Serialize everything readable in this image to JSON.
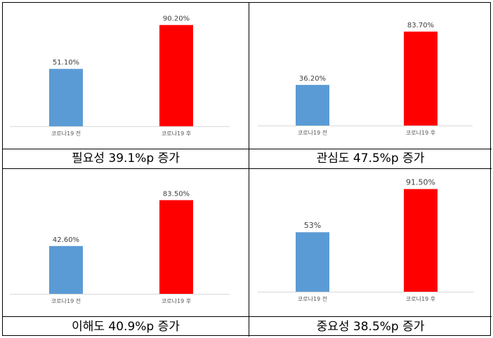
{
  "colors": {
    "before": "#5b9bd5",
    "after": "#ff0000",
    "axis": "#d9d9d9"
  },
  "chart_data": [
    {
      "type": "bar",
      "categories": [
        "코로나19 전",
        "코로나19 후"
      ],
      "values": [
        51.1,
        90.2
      ],
      "value_labels": [
        "51.10%",
        "90.20%"
      ],
      "ylim": [
        0,
        100
      ],
      "caption": "필요성 39.1%p 증가"
    },
    {
      "type": "bar",
      "categories": [
        "코로나19 전",
        "코로나19 후"
      ],
      "values": [
        36.2,
        83.7
      ],
      "value_labels": [
        "36.20%",
        "83.70%"
      ],
      "ylim": [
        0,
        100
      ],
      "caption": "관심도 47.5%p 증가"
    },
    {
      "type": "bar",
      "categories": [
        "코로나19 전",
        "코로나19 후"
      ],
      "values": [
        42.6,
        83.5
      ],
      "value_labels": [
        "42.60%",
        "83.50%"
      ],
      "ylim": [
        0,
        100
      ],
      "caption": "이해도 40.9%p 증가"
    },
    {
      "type": "bar",
      "categories": [
        "코로나19 전",
        "코로나19 후"
      ],
      "values": [
        53,
        91.5
      ],
      "value_labels": [
        "53%",
        "91.50%"
      ],
      "ylim": [
        0,
        100
      ],
      "caption": "중요성 38.5%p 증가"
    }
  ]
}
